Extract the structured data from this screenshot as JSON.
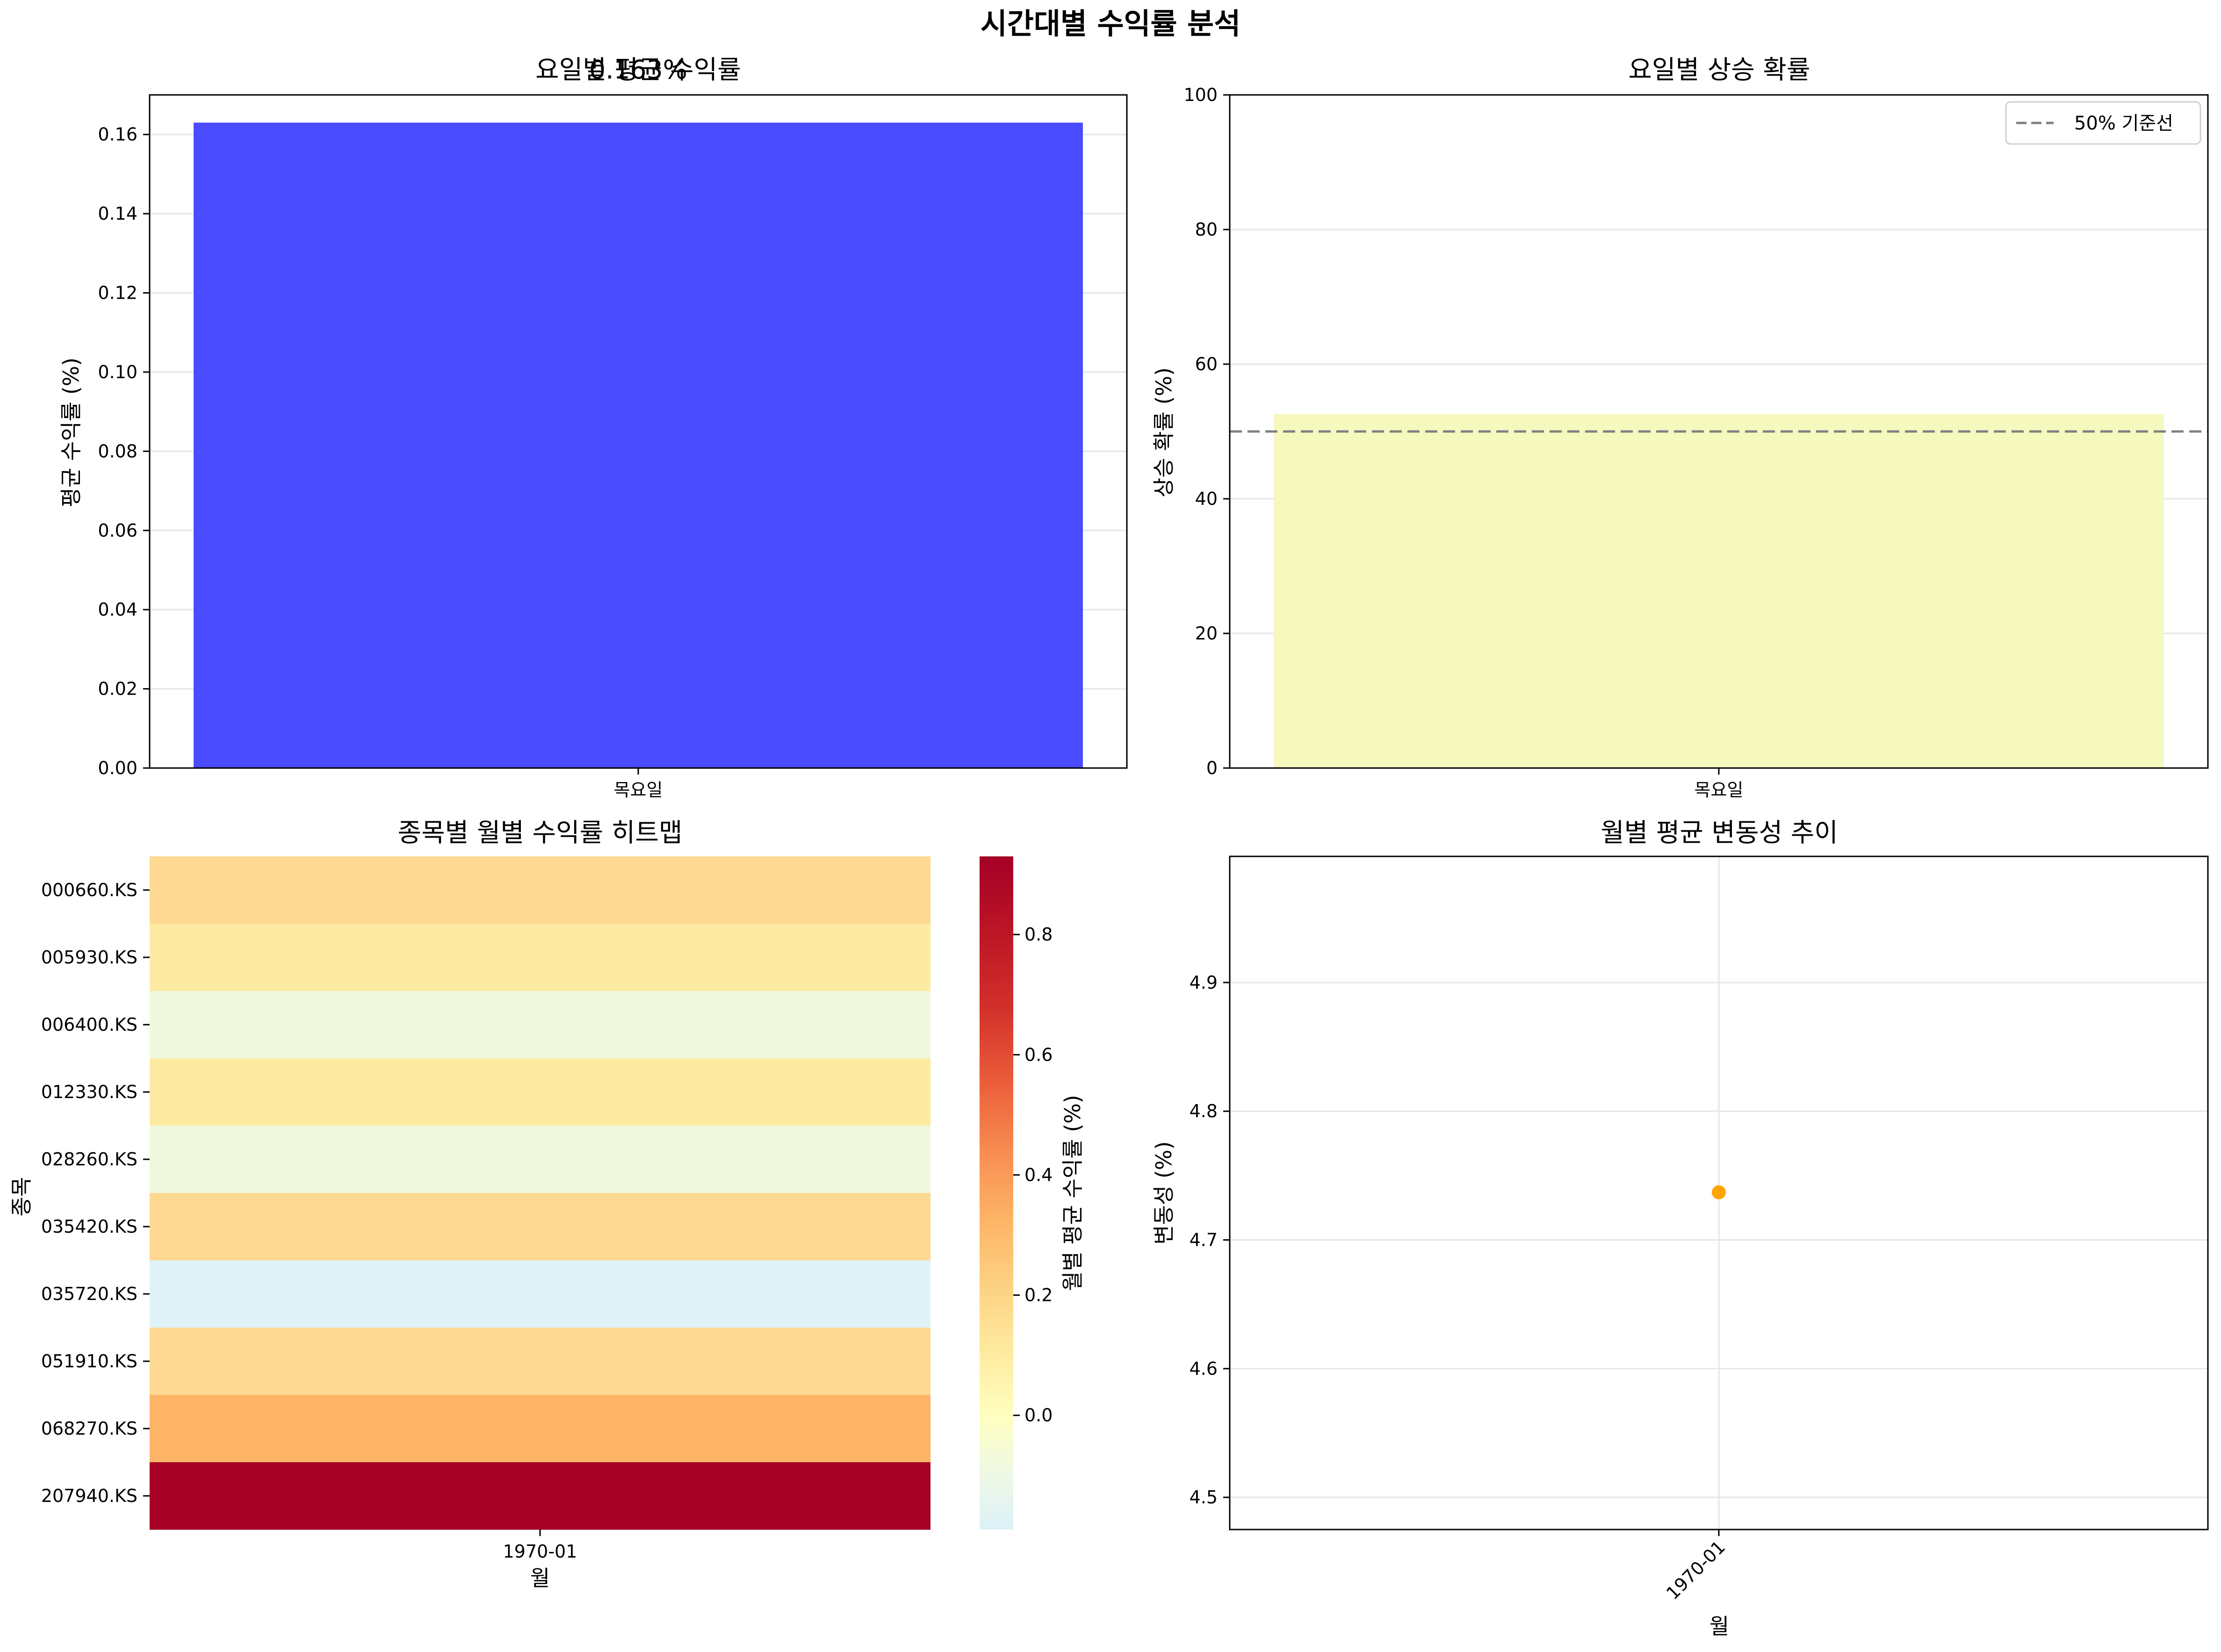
{
  "figure": {
    "title": "시간대별 수익률 분석"
  },
  "chart_data": [
    {
      "type": "bar",
      "title": "요일별 평균 수익률",
      "xlabel": "",
      "ylabel": "평균 수익률 (%)",
      "categories": [
        "목요일"
      ],
      "values": [
        0.163
      ],
      "ylim": [
        0,
        0.17
      ],
      "yticks": [
        0.0,
        0.02,
        0.04,
        0.06,
        0.08,
        0.1,
        0.12,
        0.14,
        0.16
      ],
      "data_labels": [
        "0.163%"
      ],
      "bar_color": "#4b4bff",
      "grid": true
    },
    {
      "type": "bar",
      "title": "요일별 상승 확률",
      "xlabel": "",
      "ylabel": "상승 확률 (%)",
      "categories": [
        "목요일"
      ],
      "values": [
        52.6
      ],
      "ylim": [
        0,
        100
      ],
      "yticks": [
        0,
        20,
        40,
        60,
        80,
        100
      ],
      "bar_color": "#f6f9be",
      "reference_line": {
        "value": 50,
        "label": "50% 기준선",
        "color": "#808080"
      },
      "legend": "top-right",
      "grid": true
    },
    {
      "type": "heatmap",
      "title": "종목별 월별 수익률 히트맵",
      "xlabel": "월",
      "ylabel": "종목",
      "x": [
        "1970-01"
      ],
      "y": [
        "000660.KS",
        "005930.KS",
        "006400.KS",
        "012330.KS",
        "028260.KS",
        "035420.KS",
        "035720.KS",
        "051910.KS",
        "068270.KS",
        "207940.KS"
      ],
      "values": [
        [
          0.2
        ],
        [
          0.13
        ],
        [
          -0.09
        ],
        [
          0.13
        ],
        [
          -0.09
        ],
        [
          0.2
        ],
        [
          -0.16
        ],
        [
          0.2
        ],
        [
          0.38
        ],
        [
          0.93
        ]
      ],
      "colors": [
        "#fdd992",
        "#feeba3",
        "#f0f8de",
        "#feeba3",
        "#f0f8de",
        "#fdd992",
        "#dff2f7",
        "#fdd992",
        "#fdb466",
        "#a50026"
      ],
      "colorbar": {
        "label": "월별 평균 수익률 (%)",
        "range": [
          -0.19,
          0.93
        ],
        "ticks": [
          0.0,
          0.2,
          0.4,
          0.6,
          0.8
        ],
        "tick_labels": [
          "0.0",
          "0.2",
          "0.4",
          "0.6",
          "0.8"
        ],
        "colormap": "RdYlBu_r (centered at 0)"
      }
    },
    {
      "type": "line",
      "title": "월별 평균 변동성 추이",
      "xlabel": "월",
      "ylabel": "변동성 (%)",
      "x": [
        "1970-01"
      ],
      "values": [
        4.737
      ],
      "ylim": [
        4.475,
        4.998
      ],
      "yticks": [
        4.5,
        4.6,
        4.7,
        4.8,
        4.9
      ],
      "marker_color": "#ffa500",
      "grid": true
    }
  ]
}
